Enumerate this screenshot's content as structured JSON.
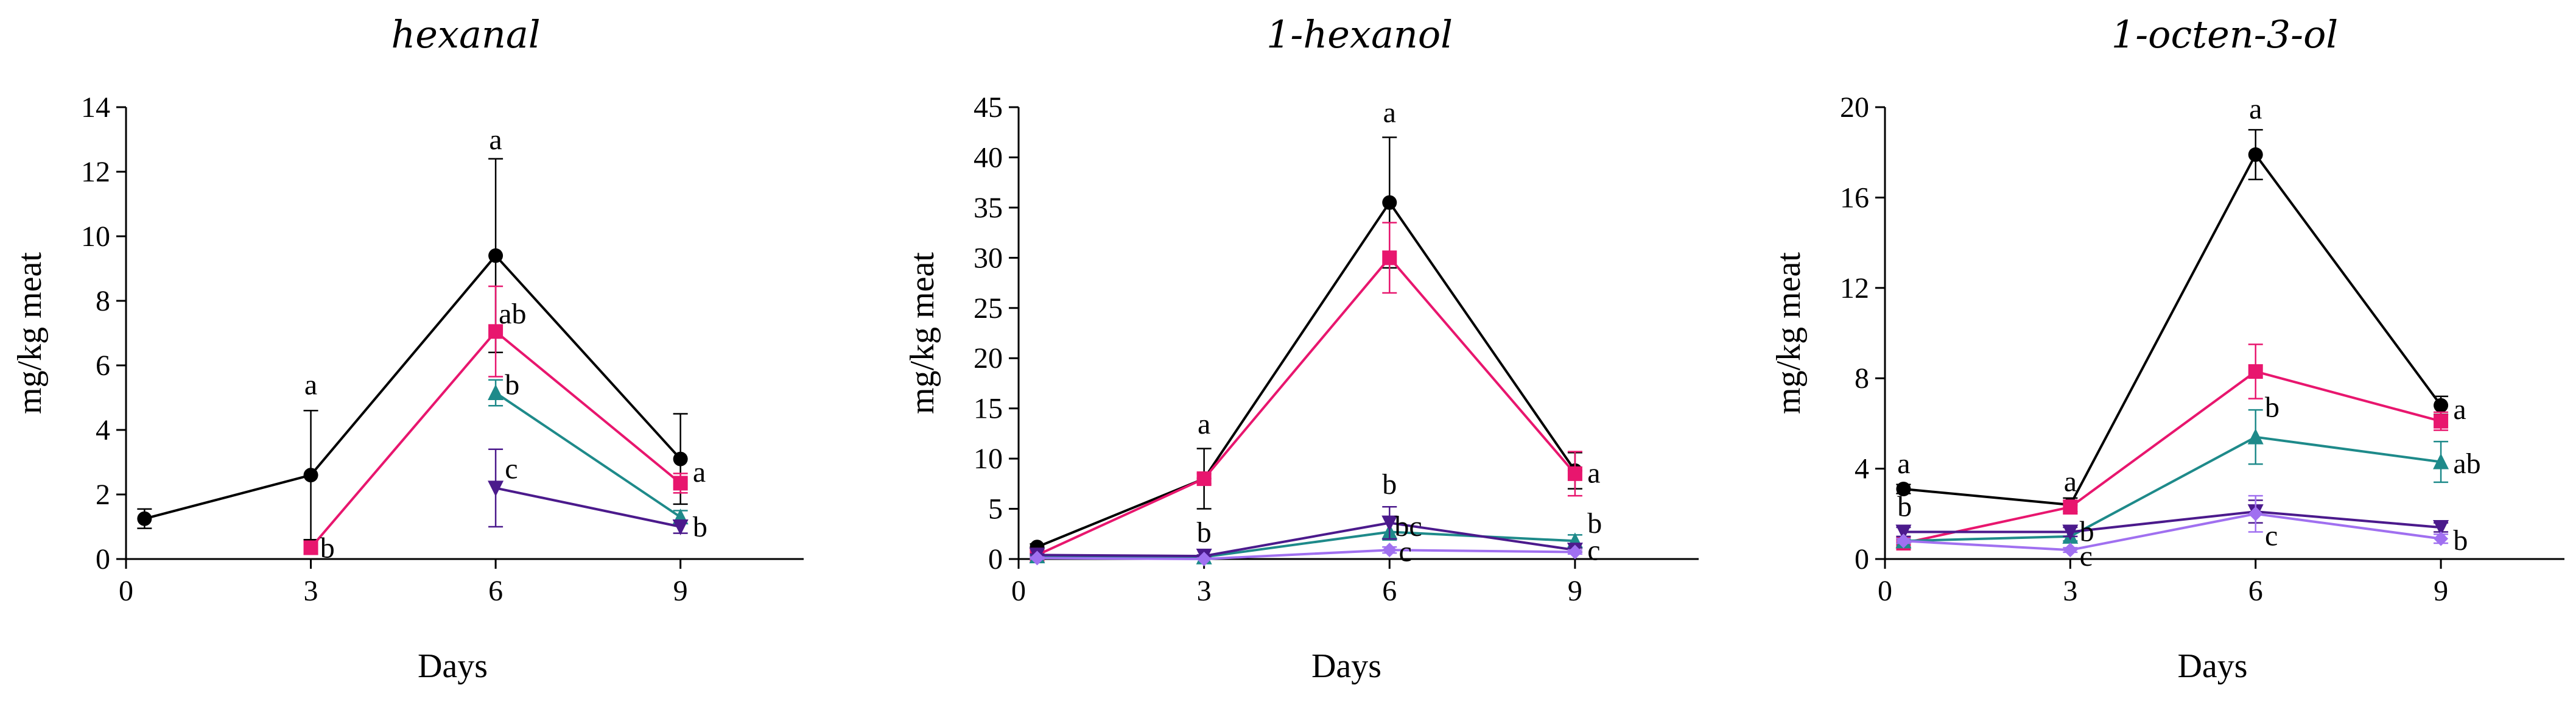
{
  "chart_data": [
    {
      "type": "line",
      "title": "hexanal",
      "xlabel": "Days",
      "ylabel": "mg/kg meat",
      "xlim": [
        0,
        11
      ],
      "ylim": [
        0,
        14
      ],
      "xticks": [
        "0",
        "3",
        "6",
        "9"
      ],
      "yticks": [
        "0",
        "2",
        "4",
        "6",
        "8",
        "10",
        "12",
        "14"
      ],
      "series": [
        {
          "name": "black",
          "color": "#000000",
          "marker": "circle",
          "points": [
            {
              "x": 0.3,
              "y": 1.25,
              "err": 0.3
            },
            {
              "x": 3,
              "y": 2.6,
              "err": 2.0
            },
            {
              "x": 6,
              "y": 9.4,
              "err": 3.0
            },
            {
              "x": 9,
              "y": 3.1,
              "err": 1.4
            }
          ]
        },
        {
          "name": "pink",
          "color": "#e8166e",
          "marker": "square",
          "points": [
            {
              "x": 3,
              "y": 0.35,
              "err": 0.2
            },
            {
              "x": 6,
              "y": 7.05,
              "err": 1.4
            },
            {
              "x": 9,
              "y": 2.35,
              "err": 0.3
            }
          ]
        },
        {
          "name": "teal",
          "color": "#1e8a8a",
          "marker": "triangle-up",
          "points": [
            {
              "x": 6,
              "y": 5.15,
              "err": 0.4
            },
            {
              "x": 9,
              "y": 1.3,
              "err": 0.2
            }
          ]
        },
        {
          "name": "indigo",
          "color": "#4b1a8c",
          "marker": "triangle-down",
          "points": [
            {
              "x": 6,
              "y": 2.2,
              "err": 1.2
            },
            {
              "x": 9,
              "y": 1.0,
              "err": 0.2
            }
          ]
        }
      ],
      "annotations": [
        {
          "x": 3,
          "y": 5.1,
          "text": "a",
          "anchor": "middle"
        },
        {
          "x": 3.15,
          "y": 0.05,
          "text": "b",
          "anchor": "start"
        },
        {
          "x": 6,
          "y": 12.7,
          "text": "a",
          "anchor": "middle"
        },
        {
          "x": 6.05,
          "y": 7.3,
          "text": "ab",
          "anchor": "start"
        },
        {
          "x": 6.15,
          "y": 5.1,
          "text": "b",
          "anchor": "start"
        },
        {
          "x": 6.15,
          "y": 2.5,
          "text": "c",
          "anchor": "start"
        },
        {
          "x": 9.2,
          "y": 2.4,
          "text": "a",
          "anchor": "start"
        },
        {
          "x": 9.2,
          "y": 0.7,
          "text": "b",
          "anchor": "start"
        }
      ]
    },
    {
      "type": "line",
      "title": "1-hexanol",
      "xlabel": "Days",
      "ylabel": "mg/kg meat",
      "xlim": [
        0,
        11
      ],
      "ylim": [
        0,
        45
      ],
      "xticks": [
        "0",
        "3",
        "6",
        "9"
      ],
      "yticks": [
        "0",
        "5",
        "10",
        "15",
        "20",
        "25",
        "30",
        "35",
        "40",
        "45"
      ],
      "series": [
        {
          "name": "black",
          "color": "#000000",
          "marker": "circle",
          "points": [
            {
              "x": 0.3,
              "y": 1.2,
              "err": 0.3
            },
            {
              "x": 3,
              "y": 8.0,
              "err": 3.0
            },
            {
              "x": 6,
              "y": 35.5,
              "err": 6.5
            },
            {
              "x": 9,
              "y": 8.8,
              "err": 1.8
            }
          ]
        },
        {
          "name": "pink",
          "color": "#e8166e",
          "marker": "square",
          "points": [
            {
              "x": 0.3,
              "y": 0.4,
              "err": 0.2
            },
            {
              "x": 3,
              "y": 8.0,
              "err": 0.5
            },
            {
              "x": 6,
              "y": 30.0,
              "err": 3.5
            },
            {
              "x": 9,
              "y": 8.5,
              "err": 2.2
            }
          ]
        },
        {
          "name": "teal",
          "color": "#1e8a8a",
          "marker": "triangle-up",
          "points": [
            {
              "x": 0.3,
              "y": 0.3,
              "err": 0.1
            },
            {
              "x": 3,
              "y": 0.2,
              "err": 0.1
            },
            {
              "x": 6,
              "y": 2.7,
              "err": 0.8
            },
            {
              "x": 9,
              "y": 1.8,
              "err": 0.6
            }
          ]
        },
        {
          "name": "indigo",
          "color": "#4b1a8c",
          "marker": "triangle-down",
          "points": [
            {
              "x": 0.3,
              "y": 0.4,
              "err": 0.1
            },
            {
              "x": 3,
              "y": 0.3,
              "err": 0.1
            },
            {
              "x": 6,
              "y": 3.6,
              "err": 1.6
            },
            {
              "x": 9,
              "y": 0.9,
              "err": 0.2
            }
          ]
        },
        {
          "name": "violet",
          "color": "#a070f0",
          "marker": "diamond",
          "points": [
            {
              "x": 0.3,
              "y": 0.1,
              "err": 0.1
            },
            {
              "x": 3,
              "y": 0.0,
              "err": 0.1
            },
            {
              "x": 6,
              "y": 0.9,
              "err": 0.3
            },
            {
              "x": 9,
              "y": 0.7,
              "err": 0.2
            }
          ]
        }
      ],
      "annotations": [
        {
          "x": 3,
          "y": 12.5,
          "text": "a",
          "anchor": "middle"
        },
        {
          "x": 3,
          "y": 1.7,
          "text": "b",
          "anchor": "middle"
        },
        {
          "x": 6,
          "y": 43.5,
          "text": "a",
          "anchor": "middle"
        },
        {
          "x": 6,
          "y": 6.5,
          "text": "b",
          "anchor": "middle"
        },
        {
          "x": 6.08,
          "y": 2.3,
          "text": "bc",
          "anchor": "start"
        },
        {
          "x": 6.15,
          "y": -0.2,
          "text": "c",
          "anchor": "start"
        },
        {
          "x": 9.2,
          "y": 7.6,
          "text": "a",
          "anchor": "start"
        },
        {
          "x": 9.2,
          "y": 2.6,
          "text": "b",
          "anchor": "start"
        },
        {
          "x": 9.2,
          "y": -0.1,
          "text": "c",
          "anchor": "start"
        }
      ]
    },
    {
      "type": "line",
      "title": "1-octen-3-ol",
      "xlabel": "Days",
      "ylabel": "mg/kg meat",
      "xlim": [
        0,
        11
      ],
      "ylim": [
        0,
        20
      ],
      "xticks": [
        "0",
        "3",
        "6",
        "9"
      ],
      "yticks": [
        "0",
        "4",
        "8",
        "12",
        "16",
        "20"
      ],
      "series": [
        {
          "name": "black",
          "color": "#000000",
          "marker": "circle",
          "points": [
            {
              "x": 0.3,
              "y": 3.1,
              "err": 0.2
            },
            {
              "x": 3,
              "y": 2.4,
              "err": 0.3
            },
            {
              "x": 6,
              "y": 17.9,
              "err": 1.1
            },
            {
              "x": 9,
              "y": 6.8,
              "err": 0.4
            }
          ]
        },
        {
          "name": "pink",
          "color": "#e8166e",
          "marker": "square",
          "points": [
            {
              "x": 0.3,
              "y": 0.7,
              "err": 0.2
            },
            {
              "x": 3,
              "y": 2.3,
              "err": 0.3
            },
            {
              "x": 6,
              "y": 8.3,
              "err": 1.2
            },
            {
              "x": 9,
              "y": 6.1,
              "err": 0.4
            }
          ]
        },
        {
          "name": "teal",
          "color": "#1e8a8a",
          "marker": "triangle-up",
          "points": [
            {
              "x": 0.3,
              "y": 0.8,
              "err": 0.1
            },
            {
              "x": 3,
              "y": 1.0,
              "err": 0.2
            },
            {
              "x": 6,
              "y": 5.4,
              "err": 1.2
            },
            {
              "x": 9,
              "y": 4.3,
              "err": 0.9
            }
          ]
        },
        {
          "name": "indigo",
          "color": "#4b1a8c",
          "marker": "triangle-down",
          "points": [
            {
              "x": 0.3,
              "y": 1.2,
              "err": 0.2
            },
            {
              "x": 3,
              "y": 1.2,
              "err": 0.2
            },
            {
              "x": 6,
              "y": 2.1,
              "err": 0.5
            },
            {
              "x": 9,
              "y": 1.4,
              "err": 0.2
            }
          ]
        },
        {
          "name": "violet",
          "color": "#a070f0",
          "marker": "diamond",
          "points": [
            {
              "x": 0.3,
              "y": 0.8,
              "err": 0.1
            },
            {
              "x": 3,
              "y": 0.4,
              "err": 0.1
            },
            {
              "x": 6,
              "y": 2.0,
              "err": 0.8
            },
            {
              "x": 9,
              "y": 0.9,
              "err": 0.2
            }
          ]
        }
      ],
      "annotations": [
        {
          "x": 0.2,
          "y": 3.8,
          "text": "a",
          "anchor": "start"
        },
        {
          "x": 0.2,
          "y": 1.9,
          "text": "b",
          "anchor": "start"
        },
        {
          "x": 3,
          "y": 3.0,
          "text": "a",
          "anchor": "middle"
        },
        {
          "x": 3.15,
          "y": 0.8,
          "text": "b",
          "anchor": "start"
        },
        {
          "x": 3.15,
          "y": -0.3,
          "text": "c",
          "anchor": "start"
        },
        {
          "x": 6,
          "y": 19.5,
          "text": "a",
          "anchor": "middle"
        },
        {
          "x": 6.15,
          "y": 6.3,
          "text": "b",
          "anchor": "start"
        },
        {
          "x": 6.15,
          "y": 0.6,
          "text": "c",
          "anchor": "start"
        },
        {
          "x": 9.2,
          "y": 6.2,
          "text": "a",
          "anchor": "start"
        },
        {
          "x": 9.2,
          "y": 3.8,
          "text": "ab",
          "anchor": "start"
        },
        {
          "x": 9.2,
          "y": 0.4,
          "text": "b",
          "anchor": "start"
        }
      ]
    }
  ]
}
